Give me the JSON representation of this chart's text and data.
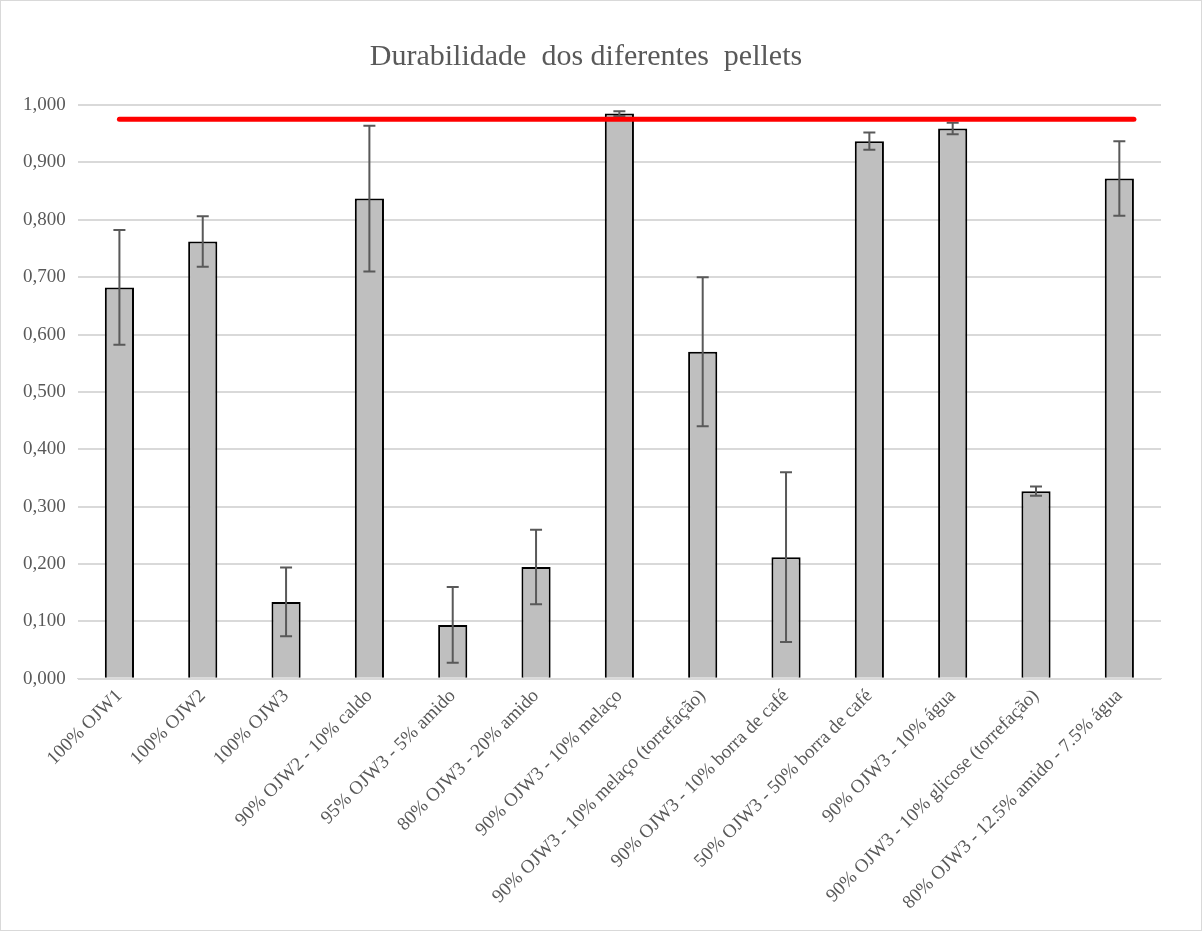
{
  "chart_data": {
    "type": "bar",
    "title": "Durabilidade  dos diferentes  pellets",
    "categories": [
      "100% OJW1",
      "100% OJW2",
      "100% OJW3",
      "90% OJW2 - 10% caldo",
      "95% OJW3 - 5% amido",
      "80% OJW3 - 20% amido",
      "90% OJW3 - 10% melaço",
      "90% OJW3 - 10% melaço (torrefação)",
      "90% OJW3 - 10% borra de café",
      "50% OJW3 - 50% borra de café",
      "90% OJW3 - 10% água",
      "90% OJW3 - 10% glicose (torrefação)",
      "80% OJW3 - 12.5% amido - 7.5% água"
    ],
    "values": [
      0.682,
      0.762,
      0.134,
      0.837,
      0.094,
      0.195,
      0.985,
      0.57,
      0.212,
      0.937,
      0.959,
      0.327,
      0.872
    ],
    "errors": [
      0.1,
      0.044,
      0.06,
      0.127,
      0.066,
      0.065,
      0.004,
      0.13,
      0.148,
      0.015,
      0.01,
      0.008,
      0.065
    ],
    "color": "#bfbfbf",
    "ylim": [
      0,
      1
    ],
    "yticks": [
      {
        "value": 0,
        "label": "0,000"
      },
      {
        "value": 0.1,
        "label": "0,100"
      },
      {
        "value": 0.2,
        "label": "0,200"
      },
      {
        "value": 0.3,
        "label": "0,300"
      },
      {
        "value": 0.4,
        "label": "0,400"
      },
      {
        "value": 0.5,
        "label": "0,500"
      },
      {
        "value": 0.6,
        "label": "0,600"
      },
      {
        "value": 0.7,
        "label": "0,700"
      },
      {
        "value": 0.8,
        "label": "0,800"
      },
      {
        "value": 0.9,
        "label": "0,900"
      },
      {
        "value": 1,
        "label": "1,000"
      }
    ],
    "ref_lines": [
      {
        "axis": "y",
        "value": 0.975,
        "color": "#ff0000"
      }
    ],
    "grid": "y",
    "legend": false
  }
}
